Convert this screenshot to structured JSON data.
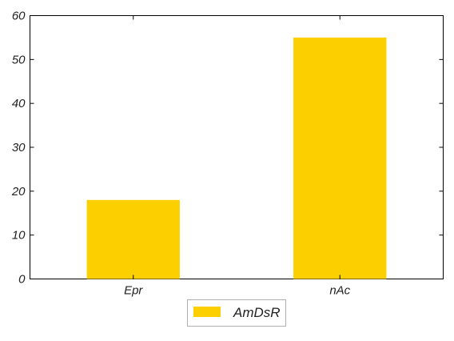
{
  "chart_data": {
    "type": "bar",
    "categories": [
      "Epr",
      "nAc"
    ],
    "series": [
      {
        "name": "AmDsR",
        "values": [
          18,
          55
        ],
        "color": "#FCD000"
      }
    ],
    "title": "",
    "xlabel": "",
    "ylabel": "",
    "ylim": [
      0,
      60
    ],
    "yticks": [
      0,
      10,
      20,
      30,
      40,
      50,
      60
    ],
    "grid": false,
    "legend_position": "bottom-center"
  }
}
